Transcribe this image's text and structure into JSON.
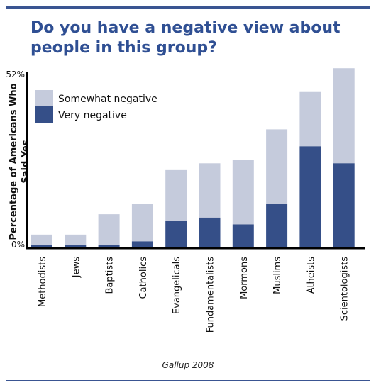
{
  "title": "Do you have a negative view about people in this group?",
  "source": "Gallup 2008",
  "colors": {
    "somewhat": "#c5cbdc",
    "very": "#354f88",
    "axis": "#000000",
    "title": "#2f4f93"
  },
  "chart_data": {
    "type": "bar",
    "stacked": true,
    "title": "Do you have a negative view about people in this group?",
    "ylabel": "Percentage of Americans Who Said Yes",
    "ylim": [
      0,
      52
    ],
    "ytick_labels": [
      "0%",
      "52%"
    ],
    "legend_position": "top-left",
    "categories": [
      "Methodists",
      "Jews",
      "Baptists",
      "Catholics",
      "Evangelicals",
      "Fundamentalists",
      "Mormons",
      "Muslims",
      "Atheists",
      "Scientologists"
    ],
    "series": [
      {
        "name": "Very negative",
        "values": [
          1,
          1,
          1,
          2,
          8,
          9,
          7,
          13,
          30,
          25
        ]
      },
      {
        "name": "Somewhat negative",
        "values": [
          3,
          3,
          9,
          11,
          15,
          16,
          19,
          22,
          16,
          28
        ]
      }
    ]
  }
}
